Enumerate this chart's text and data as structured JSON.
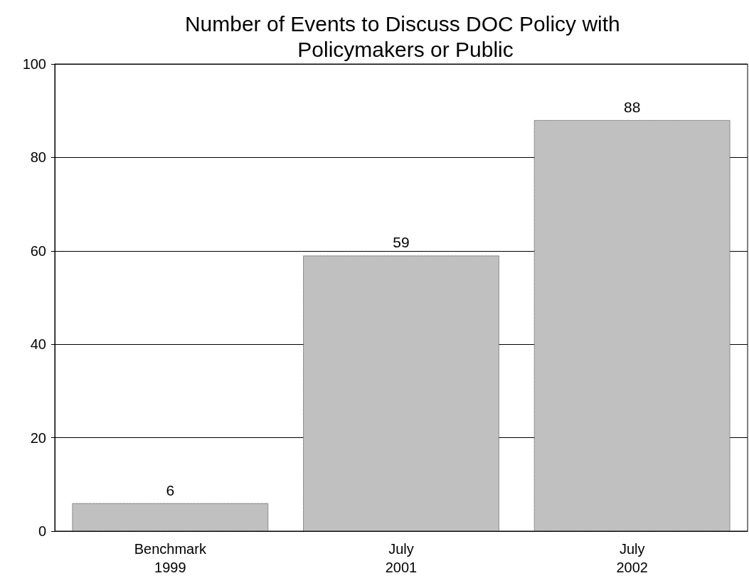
{
  "chart_data": {
    "type": "bar",
    "title": "Number of Events to Discuss DOC Policy with Policymakers or Public",
    "categories": [
      "Benchmark 1999",
      "July 2001",
      "July 2002"
    ],
    "values": [
      6,
      59,
      88
    ],
    "color": "#c0c0c0",
    "ylim": [
      0,
      100
    ],
    "yticks": [
      0,
      20,
      40,
      60,
      80,
      100
    ],
    "grid": "y",
    "data_labels": true
  }
}
